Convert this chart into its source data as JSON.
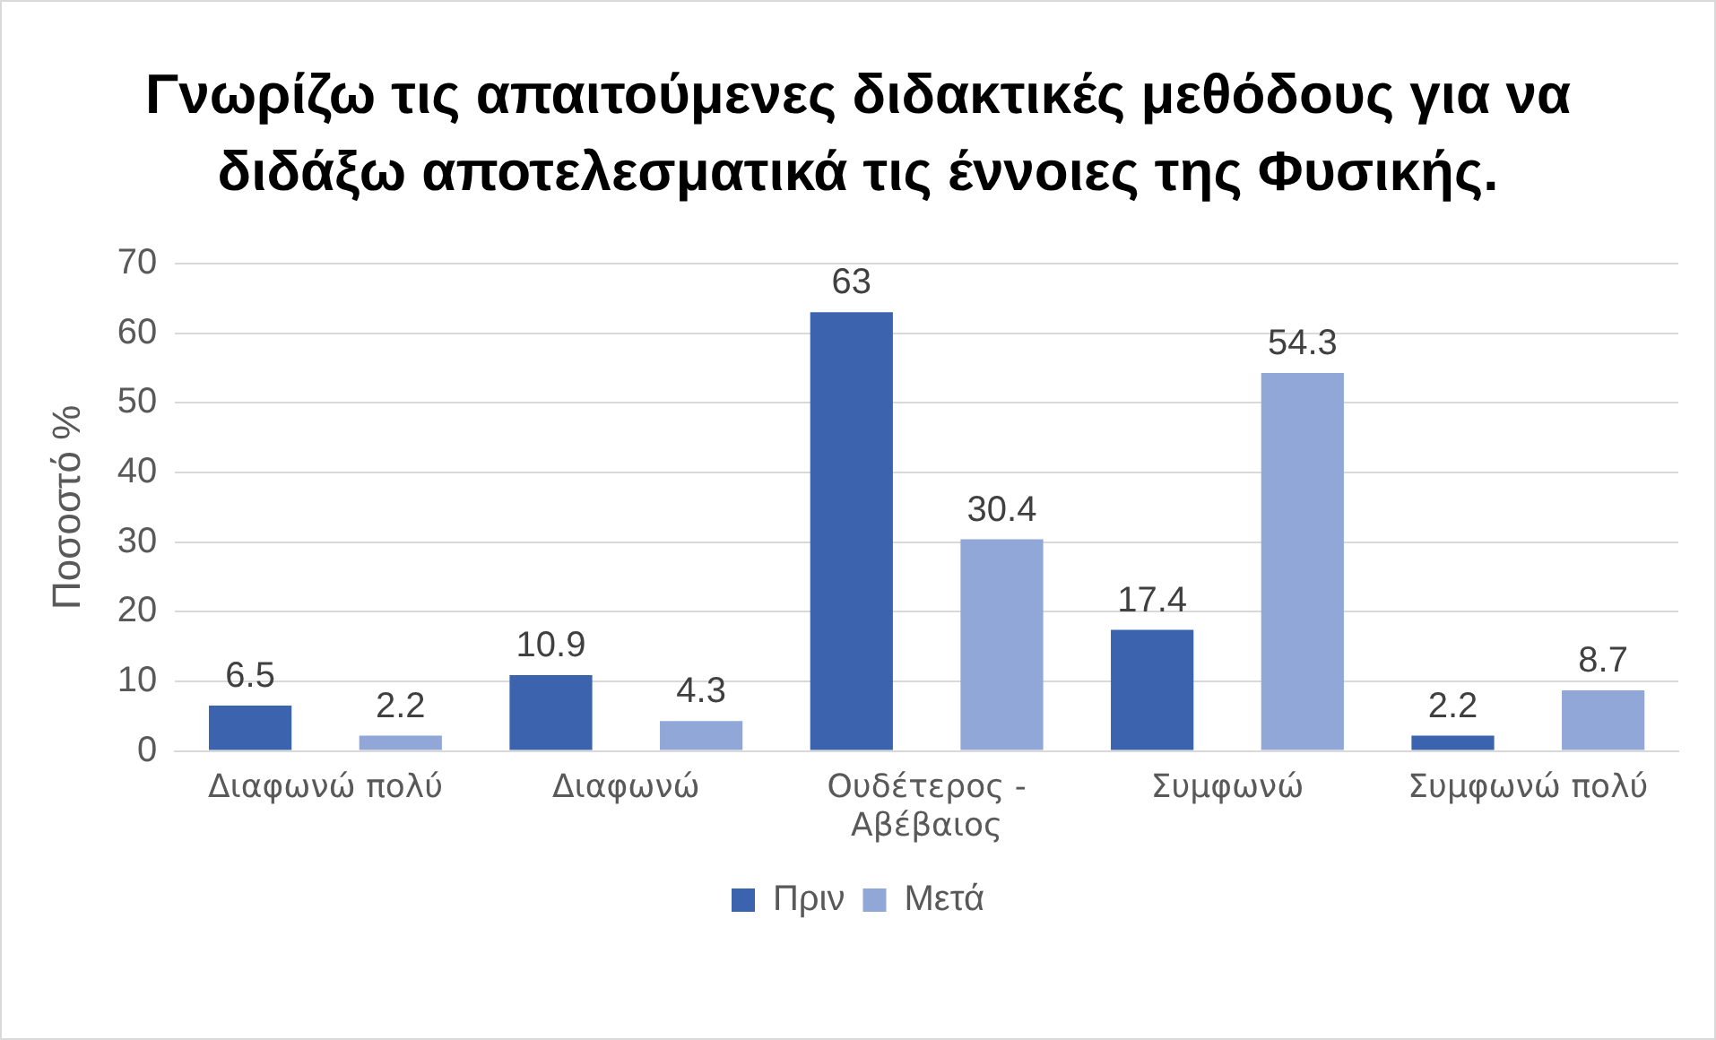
{
  "chart_data": {
    "type": "bar",
    "title": "Γνωρίζω τις απαιτούμενες διδακτικές μεθόδους για να διδάξω αποτελεσματικά τις έννοιες της Φυσικής.",
    "ylabel": "Ποσοστό %",
    "categories": [
      "Διαφωνώ πολύ",
      "Διαφωνώ",
      "Ουδέτερος - Αβέβαιος",
      "Συμφωνώ",
      "Συμφωνώ πολύ"
    ],
    "series": [
      {
        "name": "Πριν",
        "color": "#3c64ae",
        "values": [
          6.5,
          10.9,
          63,
          17.4,
          2.2
        ]
      },
      {
        "name": "Μετά",
        "color": "#91a7d8",
        "values": [
          2.2,
          4.3,
          30.4,
          54.3,
          8.7
        ]
      }
    ],
    "ylim": [
      0,
      70
    ],
    "yticks": [
      0,
      10,
      20,
      30,
      40,
      50,
      60,
      70
    ],
    "grid": "y",
    "legend": "bottom",
    "data_labels": true
  }
}
